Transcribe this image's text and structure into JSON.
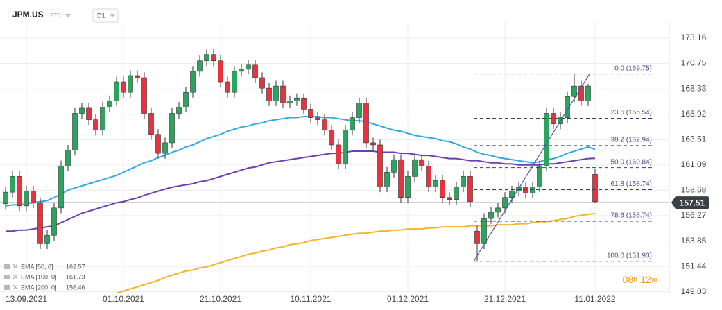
{
  "header": {
    "symbol": "JPM.US",
    "market": "STC",
    "interval": "D1"
  },
  "countdown": {
    "hours": "08",
    "h": "h",
    "minutes": "12",
    "m": "m"
  },
  "chart_data": {
    "type": "candlestick",
    "categories": [
      null,
      null,
      null,
      "13.09.2021",
      null,
      null,
      null,
      null,
      null,
      null,
      null,
      null,
      null,
      null,
      null,
      null,
      null,
      "01.10.2021",
      null,
      null,
      null,
      null,
      null,
      null,
      null,
      null,
      null,
      null,
      null,
      null,
      null,
      "21.10.2021",
      null,
      null,
      null,
      null,
      null,
      null,
      null,
      null,
      null,
      null,
      null,
      null,
      "10.11.2021",
      null,
      null,
      null,
      null,
      null,
      null,
      null,
      null,
      null,
      null,
      null,
      null,
      null,
      "01.12.2021",
      null,
      null,
      null,
      null,
      null,
      null,
      null,
      null,
      null,
      null,
      null,
      null,
      null,
      "21.12.2021",
      null,
      null,
      null,
      null,
      null,
      null,
      null,
      null,
      null,
      null,
      null,
      null,
      "11.01.2022"
    ],
    "open": [
      157.4,
      158.5,
      160,
      157.2,
      158.6,
      157.5,
      153.6,
      154.4,
      157,
      161,
      162.5,
      166,
      166.5,
      165.4,
      164.4,
      166.6,
      167.2,
      169,
      168,
      169.6,
      169.4,
      166,
      164,
      162.2,
      163.2,
      166,
      166.6,
      168,
      170,
      171,
      171.6,
      171,
      169,
      168,
      170,
      170.2,
      170.6,
      169.4,
      168.4,
      167.2,
      168.6,
      167,
      167.2,
      167.4,
      166.4,
      165.6,
      165.4,
      164.4,
      163,
      161.2,
      164.4,
      165.6,
      167,
      163.2,
      163,
      159,
      160.4,
      161.6,
      158,
      160,
      161.6,
      161,
      159,
      159.6,
      158,
      157.8,
      159,
      160,
      154.8,
      153.6,
      156,
      156.6,
      157,
      158,
      158.6,
      159,
      158.4,
      159,
      161,
      166,
      165,
      165.6,
      167.6,
      168.6,
      167.2,
      160.2
    ],
    "high": [
      159.0,
      160.5,
      160.5,
      159.1,
      159.1,
      158.0,
      154.9,
      157.5,
      161.5,
      163.0,
      166.5,
      167.0,
      167.0,
      165.9,
      167.1,
      167.7,
      169.5,
      169.5,
      170.1,
      170.1,
      169.9,
      166.5,
      164.5,
      163.7,
      166.5,
      167.1,
      168.5,
      170.5,
      171.5,
      172.1,
      172.1,
      171.5,
      169.5,
      170.5,
      170.7,
      171.1,
      171.1,
      169.9,
      168.9,
      169.1,
      169.1,
      167.7,
      167.9,
      167.9,
      166.9,
      166.1,
      165.9,
      164.9,
      163.5,
      164.9,
      166.1,
      167.5,
      167.5,
      163.7,
      163.5,
      160.9,
      162.1,
      162.1,
      160.5,
      162.1,
      162.1,
      161.5,
      160.1,
      160.1,
      158.5,
      159.5,
      160.5,
      160.5,
      155.3,
      156.5,
      157.1,
      157.5,
      158.5,
      159.1,
      159.5,
      159.5,
      159.5,
      161.5,
      166.5,
      166.5,
      166.1,
      168.1,
      169.75,
      169.1,
      168.8,
      160.7
    ],
    "low": [
      156.9,
      158.0,
      156.7,
      156.7,
      157.0,
      153.1,
      153.1,
      153.9,
      156.5,
      160.5,
      162.0,
      165.5,
      164.9,
      163.9,
      163.9,
      166.1,
      166.7,
      167.5,
      167.5,
      168.9,
      165.5,
      163.5,
      161.7,
      161.7,
      162.7,
      165.5,
      166.1,
      167.5,
      169.5,
      170.5,
      170.5,
      168.5,
      167.5,
      167.5,
      169.5,
      169.7,
      168.9,
      167.9,
      166.7,
      166.7,
      166.5,
      166.5,
      166.7,
      165.9,
      165.1,
      164.9,
      163.9,
      162.5,
      160.7,
      160.7,
      163.9,
      165.1,
      162.7,
      162.5,
      158.5,
      158.5,
      159.9,
      157.5,
      157.5,
      159.5,
      160.5,
      158.5,
      158.5,
      157.5,
      157.3,
      157.3,
      158.5,
      157.1,
      151.93,
      153.1,
      155.5,
      156.1,
      156.5,
      157.5,
      158.1,
      157.9,
      157.9,
      158.5,
      160.5,
      164.5,
      164.5,
      165.1,
      167.1,
      166.7,
      166.7,
      157.5
    ],
    "close": [
      158.5,
      160,
      157.2,
      158.6,
      157.5,
      153.6,
      154.4,
      157,
      161,
      162.5,
      166,
      166.5,
      165.4,
      164.4,
      166.6,
      167.2,
      169,
      168,
      169.6,
      169.4,
      166,
      164,
      162.2,
      163.2,
      166,
      166.6,
      168,
      170,
      171,
      171.6,
      171,
      169,
      168,
      170,
      170.2,
      170.6,
      169.4,
      168.4,
      167.2,
      168.6,
      167,
      167.2,
      167.4,
      166.4,
      165.6,
      165.4,
      164.4,
      163,
      161.2,
      164.4,
      165.6,
      167,
      163.2,
      163,
      159,
      160.4,
      161.6,
      158,
      160,
      161.6,
      161,
      159,
      159.6,
      158,
      157.8,
      159,
      160,
      157.6,
      153.6,
      156,
      156.6,
      157,
      158,
      158.6,
      159,
      158.4,
      159,
      161,
      166,
      165,
      165.6,
      167.6,
      168.6,
      167.2,
      168.6,
      157.6
    ],
    "up_color": "#2ba55e",
    "down_color": "#e8333f",
    "series": [
      {
        "name": "EMA [50, 0]",
        "last": 162.57,
        "color": "#2fa9e6",
        "values": [
          157.2,
          157.3,
          157.3,
          157.4,
          157.5,
          157.6,
          157.7,
          158.0,
          158.3,
          158.7,
          158.9,
          159.1,
          159.3,
          159.5,
          159.7,
          159.9,
          160.1,
          160.4,
          160.7,
          161.0,
          161.3,
          161.5,
          161.8,
          162.0,
          162.3,
          162.5,
          162.8,
          163.0,
          163.3,
          163.6,
          163.8,
          164.0,
          164.3,
          164.5,
          164.7,
          164.8,
          165.0,
          165.1,
          165.3,
          165.4,
          165.5,
          165.6,
          165.6,
          165.7,
          165.7,
          165.7,
          165.6,
          165.6,
          165.5,
          165.4,
          165.3,
          165.3,
          165.2,
          165.0,
          164.8,
          164.6,
          164.4,
          164.3,
          164.1,
          163.9,
          163.8,
          163.7,
          163.6,
          163.4,
          163.3,
          163.1,
          162.8,
          162.6,
          162.3,
          162.1,
          162.0,
          161.8,
          161.7,
          161.6,
          161.5,
          161.4,
          161.3,
          161.4,
          161.6,
          161.7,
          161.9,
          162.2,
          162.4,
          162.6,
          162.8,
          162.57
        ]
      },
      {
        "name": "EMA [100, 0]",
        "last": 161.73,
        "color": "#6b3fb3",
        "values": [
          154.8,
          154.8,
          154.9,
          154.9,
          155.0,
          155.1,
          155.2,
          155.3,
          155.6,
          155.9,
          156.2,
          156.5,
          156.7,
          156.9,
          157.1,
          157.3,
          157.5,
          157.6,
          157.8,
          157.96,
          158.2,
          158.4,
          158.6,
          158.8,
          158.97,
          159.1,
          159.2,
          159.3,
          159.5,
          159.6,
          159.8,
          160.0,
          160.2,
          160.4,
          160.6,
          160.8,
          160.9,
          161.1,
          161.3,
          161.4,
          161.5,
          161.6,
          161.7,
          161.8,
          161.9,
          162.0,
          162.1,
          162.2,
          162.2,
          162.3,
          162.4,
          162.4,
          162.4,
          162.4,
          162.3,
          162.3,
          162.3,
          162.2,
          162.2,
          162.1,
          162.0,
          162.0,
          161.9,
          161.8,
          161.7,
          161.7,
          161.6,
          161.5,
          161.5,
          161.4,
          161.3,
          161.3,
          161.2,
          161.2,
          161.1,
          161.1,
          161.1,
          161.1,
          161.2,
          161.2,
          161.3,
          161.4,
          161.5,
          161.6,
          161.7,
          161.73
        ]
      },
      {
        "name": "EMA [200, 0]",
        "last": 156.46,
        "color": "#f5b428",
        "values": [
          null,
          null,
          null,
          null,
          null,
          null,
          null,
          null,
          null,
          null,
          null,
          null,
          null,
          null,
          null,
          null,
          148.9,
          149.1,
          149.3,
          149.5,
          149.7,
          149.9,
          150.1,
          150.4,
          150.6,
          150.8,
          151.0,
          151.1,
          151.3,
          151.4,
          151.6,
          151.8,
          152.0,
          152.2,
          152.4,
          152.6,
          152.7,
          152.9,
          153.0,
          153.2,
          153.3,
          153.5,
          153.6,
          153.7,
          153.9,
          154.0,
          154.1,
          154.2,
          154.3,
          154.4,
          154.5,
          154.6,
          154.6,
          154.7,
          154.8,
          154.8,
          154.9,
          154.9,
          155.0,
          155.0,
          155.0,
          155.1,
          155.1,
          155.2,
          155.2,
          155.2,
          155.2,
          155.3,
          155.3,
          155.3,
          155.3,
          155.4,
          155.4,
          155.4,
          155.5,
          155.5,
          155.6,
          155.7,
          155.7,
          155.8,
          155.9,
          156.0,
          156.2,
          156.3,
          156.4,
          156.46
        ]
      }
    ],
    "fibonacci": [
      {
        "label": "0.0 (169.75)",
        "value": 169.75
      },
      {
        "label": "23.6 (165.54)",
        "value": 165.54
      },
      {
        "label": "38.2 (162.94)",
        "value": 162.94
      },
      {
        "label": "50.0 (160.84)",
        "value": 160.84
      },
      {
        "label": "61.8 (158.74)",
        "value": 158.74
      },
      {
        "label": "78.6 (155.74)",
        "value": 155.74
      },
      {
        "label": "100.0 (151.93)",
        "value": 151.93
      }
    ],
    "current_price": 157.51,
    "ylim": [
      148.94,
      174.81
    ],
    "yticks": [
      173.16,
      170.75,
      168.33,
      165.92,
      163.51,
      161.09,
      158.68,
      156.27,
      153.85,
      151.44,
      149.03
    ],
    "grid": true
  }
}
